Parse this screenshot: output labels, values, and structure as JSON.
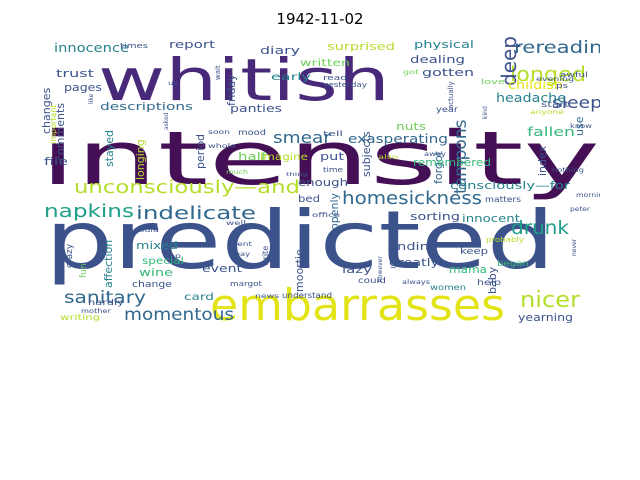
{
  "figure": {
    "title": "1942-11-02"
  },
  "wordcloud": {
    "colormap": "viridis",
    "colors": {
      "dark_purple": "#440f55",
      "purple": "#482878",
      "indigo": "#3b528b",
      "blue": "#31688e",
      "teal": "#26828e",
      "green_teal": "#1f9e89",
      "green": "#35b779",
      "light_green": "#6ece58",
      "yellow_green": "#b5de2b",
      "yellow": "#e2e418"
    },
    "words": [
      {
        "text": "intensity",
        "color": "#440f55"
      },
      {
        "text": "whitish",
        "color": "#482878"
      },
      {
        "text": "predicted",
        "color": "#3b528b"
      },
      {
        "text": "embarrasses",
        "color": "#e2e418"
      },
      {
        "text": "unconsciously—and",
        "color": "#b5de2b"
      },
      {
        "text": "napkins",
        "color": "#1f9e89"
      },
      {
        "text": "indelicate",
        "color": "#31688e"
      },
      {
        "text": "homesickness",
        "color": "#31688e"
      },
      {
        "text": "sanitary",
        "color": "#31688e"
      },
      {
        "text": "momentous",
        "color": "#31688e"
      },
      {
        "text": "nicer",
        "color": "#b5de2b"
      },
      {
        "text": "drunk",
        "color": "#1f9e89"
      },
      {
        "text": "rereading",
        "color": "#31688e"
      },
      {
        "text": "longed",
        "color": "#b5de2b"
      },
      {
        "text": "deep",
        "color": "#3b528b"
      },
      {
        "text": "sleep",
        "color": "#3b528b"
      },
      {
        "text": "tampons",
        "color": "#31688e"
      },
      {
        "text": "smear",
        "color": "#31688e"
      },
      {
        "text": "exasperating",
        "color": "#31688e"
      },
      {
        "text": "headache",
        "color": "#26828e"
      },
      {
        "text": "childish",
        "color": "#e2e418"
      },
      {
        "text": "innocence",
        "color": "#26828e"
      },
      {
        "text": "report",
        "color": "#3b528b"
      },
      {
        "text": "friday",
        "color": "#3b528b"
      },
      {
        "text": "diary",
        "color": "#3b528b"
      },
      {
        "text": "surprised",
        "color": "#b5de2b"
      },
      {
        "text": "physical",
        "color": "#26828e"
      },
      {
        "text": "dealing",
        "color": "#3b528b"
      },
      {
        "text": "gotten",
        "color": "#3b528b"
      },
      {
        "text": "fallen",
        "color": "#35b779"
      },
      {
        "text": "trust",
        "color": "#3b528b"
      },
      {
        "text": "pages",
        "color": "#3b528b"
      },
      {
        "text": "changes",
        "color": "#3b528b"
      },
      {
        "text": "written",
        "color": "#6ece58"
      },
      {
        "text": "early",
        "color": "#26828e"
      },
      {
        "text": "panties",
        "color": "#3b528b"
      },
      {
        "text": "descriptions",
        "color": "#31688e"
      },
      {
        "text": "stayed",
        "color": "#26828e"
      },
      {
        "text": "longing",
        "color": "#b5de2b"
      },
      {
        "text": "period",
        "color": "#3b528b"
      },
      {
        "text": "comments",
        "color": "#3b528b"
      },
      {
        "text": "file",
        "color": "#3b528b"
      },
      {
        "text": "half",
        "color": "#6ece58"
      },
      {
        "text": "imagine",
        "color": "#b5de2b"
      },
      {
        "text": "put",
        "color": "#3b528b"
      },
      {
        "text": "subjects",
        "color": "#3b528b"
      },
      {
        "text": "nuts",
        "color": "#6ece58"
      },
      {
        "text": "forgot",
        "color": "#31688e"
      },
      {
        "text": "use",
        "color": "#31688e"
      },
      {
        "text": "index",
        "color": "#3b528b"
      },
      {
        "text": "mention",
        "color": "#3b528b"
      },
      {
        "text": "consciously—for",
        "color": "#26828e"
      },
      {
        "text": "remembered",
        "color": "#35b779"
      },
      {
        "text": "enough",
        "color": "#3b528b"
      },
      {
        "text": "bed",
        "color": "#3b528b"
      },
      {
        "text": "openly",
        "color": "#31688e"
      },
      {
        "text": "sorting",
        "color": "#3b528b"
      },
      {
        "text": "innocent",
        "color": "#26828e"
      },
      {
        "text": "affection",
        "color": "#26828e"
      },
      {
        "text": "mixed",
        "color": "#26828e"
      },
      {
        "text": "special",
        "color": "#35b779"
      },
      {
        "text": "wine",
        "color": "#35b779"
      },
      {
        "text": "event",
        "color": "#3b528b"
      },
      {
        "text": "moortje",
        "color": "#3b528b"
      },
      {
        "text": "lazy",
        "color": "#3b528b"
      },
      {
        "text": "finding",
        "color": "#3b528b"
      },
      {
        "text": "greatly",
        "color": "#3b528b"
      },
      {
        "text": "mama",
        "color": "#35b779"
      },
      {
        "text": "baby",
        "color": "#3b528b"
      },
      {
        "text": "yearning",
        "color": "#3b528b"
      },
      {
        "text": "card",
        "color": "#26828e"
      },
      {
        "text": "change",
        "color": "#3b528b"
      },
      {
        "text": "crazy",
        "color": "#3b528b"
      },
      {
        "text": "fun",
        "color": "#6ece58"
      },
      {
        "text": "hardly",
        "color": "#3b528b"
      },
      {
        "text": "writing",
        "color": "#b5de2b"
      },
      {
        "text": "would",
        "color": "#3b528b"
      },
      {
        "text": "bep",
        "color": "#3b528b"
      },
      {
        "text": "margot",
        "color": "#3b528b"
      },
      {
        "text": "news",
        "color": "#3b528b"
      },
      {
        "text": "understand",
        "color": "#3b528b"
      },
      {
        "text": "could",
        "color": "#3b528b"
      },
      {
        "text": "women",
        "color": "#26828e"
      },
      {
        "text": "help",
        "color": "#3b528b"
      },
      {
        "text": "keep",
        "color": "#3b528b"
      },
      {
        "text": "began",
        "color": "#35b779"
      },
      {
        "text": "probably",
        "color": "#b5de2b"
      },
      {
        "text": "always",
        "color": "#3b528b"
      },
      {
        "text": "however",
        "color": "#3b528b"
      },
      {
        "text": "matters",
        "color": "#3b528b"
      },
      {
        "text": "nothing",
        "color": "#3b528b"
      },
      {
        "text": "morning",
        "color": "#3b528b"
      },
      {
        "text": "peter",
        "color": "#3b528b"
      },
      {
        "text": "never",
        "color": "#3b528b"
      },
      {
        "text": "times",
        "color": "#3b528b"
      },
      {
        "text": "wait",
        "color": "#3b528b"
      },
      {
        "text": "read",
        "color": "#3b528b"
      },
      {
        "text": "yesterday",
        "color": "#3b528b"
      },
      {
        "text": "actually",
        "color": "#3b528b"
      },
      {
        "text": "love",
        "color": "#6ece58"
      },
      {
        "text": "awful",
        "color": "#3b528b"
      },
      {
        "text": "ps",
        "color": "#3b528b"
      },
      {
        "text": "evening",
        "color": "#3b528b"
      },
      {
        "text": "start",
        "color": "#3b528b"
      },
      {
        "text": "anyone",
        "color": "#b5de2b"
      },
      {
        "text": "year",
        "color": "#3b528b"
      },
      {
        "text": "mood",
        "color": "#3b528b"
      },
      {
        "text": "tell",
        "color": "#3b528b"
      },
      {
        "text": "time",
        "color": "#3b528b"
      },
      {
        "text": "whole",
        "color": "#3b528b"
      },
      {
        "text": "soon",
        "color": "#3b528b"
      },
      {
        "text": "much",
        "color": "#6ece58"
      },
      {
        "text": "thing",
        "color": "#3b528b"
      },
      {
        "text": "went",
        "color": "#3b528b"
      },
      {
        "text": "may",
        "color": "#3b528b"
      },
      {
        "text": "write",
        "color": "#3b528b"
      },
      {
        "text": "office",
        "color": "#3b528b"
      },
      {
        "text": "well",
        "color": "#3b528b"
      },
      {
        "text": "asked",
        "color": "#3b528b"
      },
      {
        "text": "important",
        "color": "#b5de2b"
      },
      {
        "text": "like",
        "color": "#3b528b"
      },
      {
        "text": "also",
        "color": "#b5de2b"
      },
      {
        "text": "away",
        "color": "#3b528b"
      },
      {
        "text": "us",
        "color": "#3b528b"
      },
      {
        "text": "mother",
        "color": "#3b528b"
      },
      {
        "text": "know",
        "color": "#3b528b"
      },
      {
        "text": "kind",
        "color": "#3b528b"
      },
      {
        "text": "got",
        "color": "#6ece58"
      }
    ]
  }
}
